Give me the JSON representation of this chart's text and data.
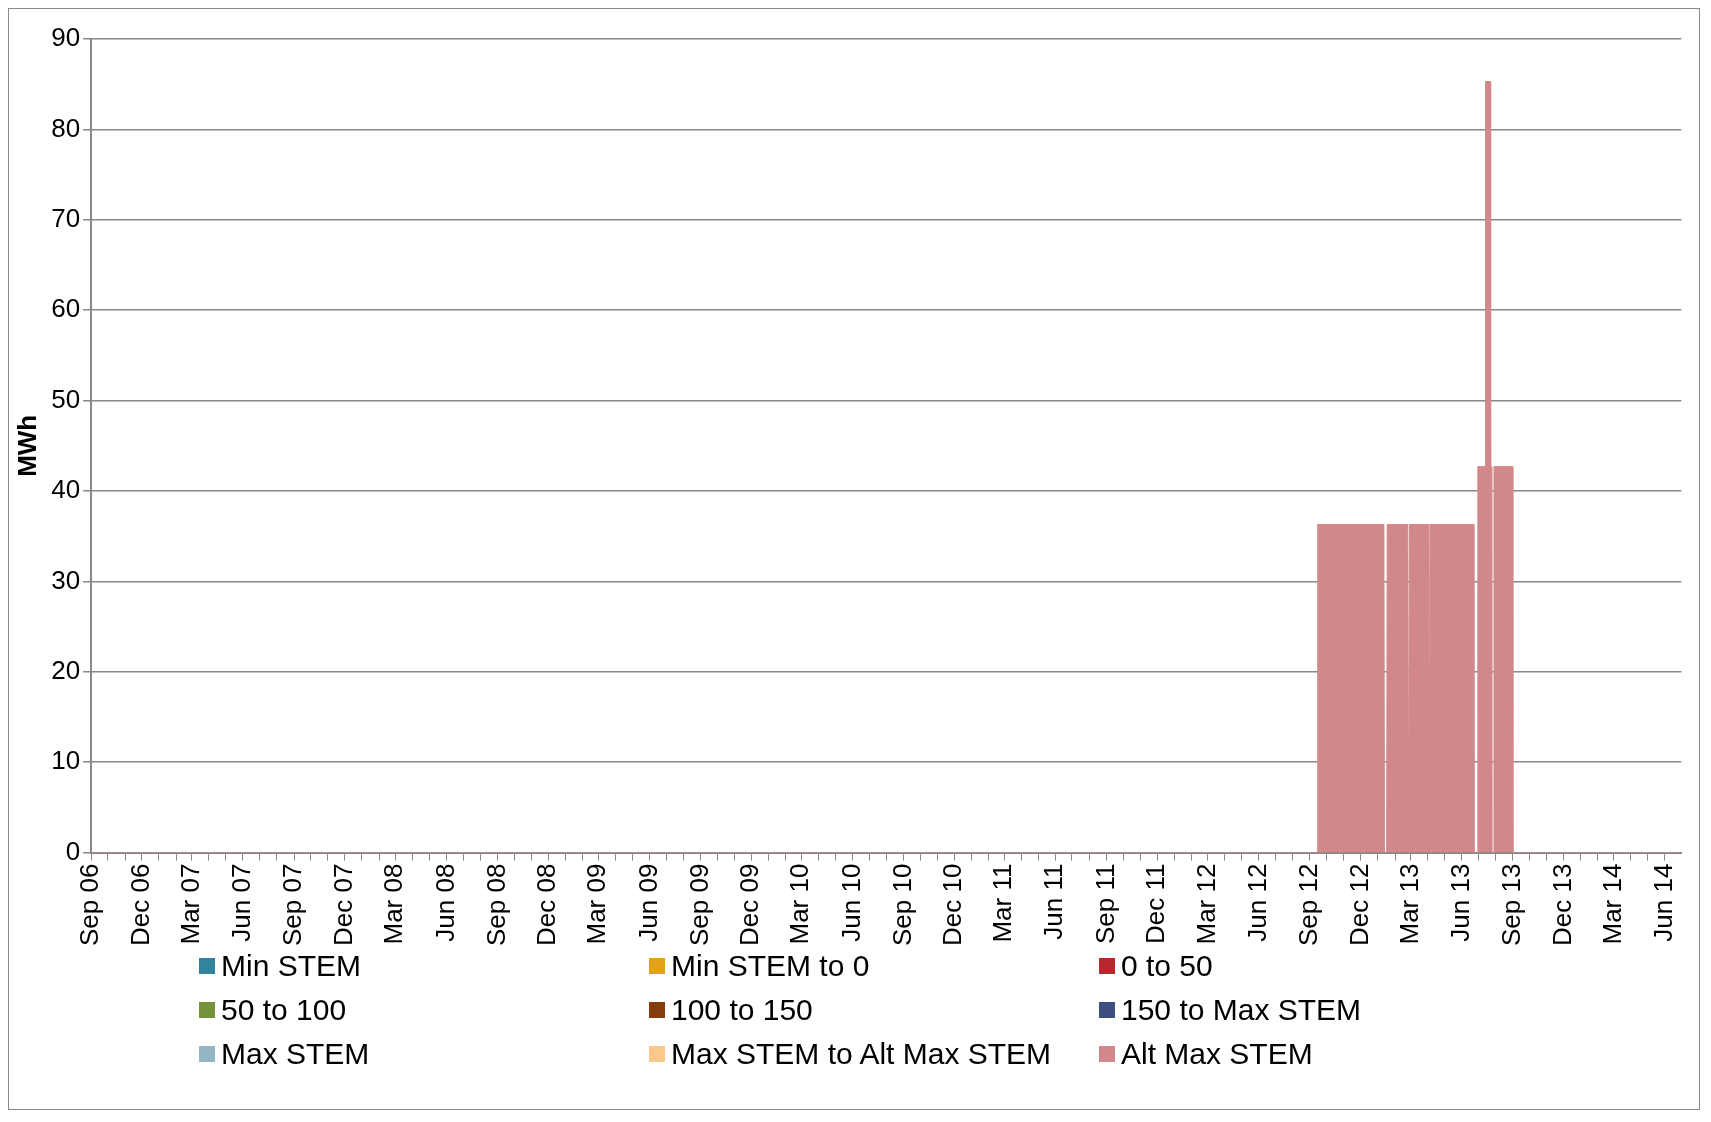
{
  "chart_data": {
    "type": "area",
    "ylabel": "MWh",
    "grid": "y",
    "legend": "bottom",
    "x": [
      "2006-09-01",
      "2012-09-14",
      "2012-09-15",
      "2013-01-12",
      "2013-01-13",
      "2013-01-17",
      "2013-01-18",
      "2013-02-24",
      "2013-02-25",
      "2013-02-26",
      "2013-02-27",
      "2013-04-03",
      "2013-04-04",
      "2013-04-05",
      "2013-06-22",
      "2013-06-23",
      "2013-06-29",
      "2013-06-30",
      "2013-07-13",
      "2013-07-14",
      "2013-07-22",
      "2013-07-23",
      "2013-07-24",
      "2013-07-25",
      "2013-07-28",
      "2013-07-29",
      "2013-08-31",
      "2013-09-01",
      "2014-07-01"
    ],
    "xlim": [
      "2006-09-01",
      "2014-07-01"
    ],
    "xticks": [
      {
        "value": "2006-09",
        "label": "Sep 06"
      },
      {
        "value": "2006-10",
        "label": null
      },
      {
        "value": "2006-11",
        "label": null
      },
      {
        "value": "2006-12",
        "label": "Dec 06"
      },
      {
        "value": "2007-01",
        "label": null
      },
      {
        "value": "2007-02",
        "label": null
      },
      {
        "value": "2007-03",
        "label": "Mar 07"
      },
      {
        "value": "2007-04",
        "label": null
      },
      {
        "value": "2007-05",
        "label": null
      },
      {
        "value": "2007-06",
        "label": "Jun 07"
      },
      {
        "value": "2007-07",
        "label": null
      },
      {
        "value": "2007-08",
        "label": null
      },
      {
        "value": "2007-09",
        "label": "Sep 07"
      },
      {
        "value": "2007-10",
        "label": null
      },
      {
        "value": "2007-11",
        "label": null
      },
      {
        "value": "2007-12",
        "label": "Dec 07"
      },
      {
        "value": "2008-01",
        "label": null
      },
      {
        "value": "2008-02",
        "label": null
      },
      {
        "value": "2008-03",
        "label": "Mar 08"
      },
      {
        "value": "2008-04",
        "label": null
      },
      {
        "value": "2008-05",
        "label": null
      },
      {
        "value": "2008-06",
        "label": "Jun 08"
      },
      {
        "value": "2008-07",
        "label": null
      },
      {
        "value": "2008-08",
        "label": null
      },
      {
        "value": "2008-09",
        "label": "Sep 08"
      },
      {
        "value": "2008-10",
        "label": null
      },
      {
        "value": "2008-11",
        "label": null
      },
      {
        "value": "2008-12",
        "label": "Dec 08"
      },
      {
        "value": "2009-01",
        "label": null
      },
      {
        "value": "2009-02",
        "label": null
      },
      {
        "value": "2009-03",
        "label": "Mar 09"
      },
      {
        "value": "2009-04",
        "label": null
      },
      {
        "value": "2009-05",
        "label": null
      },
      {
        "value": "2009-06",
        "label": "Jun 09"
      },
      {
        "value": "2009-07",
        "label": null
      },
      {
        "value": "2009-08",
        "label": null
      },
      {
        "value": "2009-09",
        "label": "Sep 09"
      },
      {
        "value": "2009-10",
        "label": null
      },
      {
        "value": "2009-11",
        "label": null
      },
      {
        "value": "2009-12",
        "label": "Dec 09"
      },
      {
        "value": "2010-01",
        "label": null
      },
      {
        "value": "2010-02",
        "label": null
      },
      {
        "value": "2010-03",
        "label": "Mar 10"
      },
      {
        "value": "2010-04",
        "label": null
      },
      {
        "value": "2010-05",
        "label": null
      },
      {
        "value": "2010-06",
        "label": "Jun 10"
      },
      {
        "value": "2010-07",
        "label": null
      },
      {
        "value": "2010-08",
        "label": null
      },
      {
        "value": "2010-09",
        "label": "Sep 10"
      },
      {
        "value": "2010-10",
        "label": null
      },
      {
        "value": "2010-11",
        "label": null
      },
      {
        "value": "2010-12",
        "label": "Dec 10"
      },
      {
        "value": "2011-01",
        "label": null
      },
      {
        "value": "2011-02",
        "label": null
      },
      {
        "value": "2011-03",
        "label": "Mar 11"
      },
      {
        "value": "2011-04",
        "label": null
      },
      {
        "value": "2011-05",
        "label": null
      },
      {
        "value": "2011-06",
        "label": "Jun 11"
      },
      {
        "value": "2011-07",
        "label": null
      },
      {
        "value": "2011-08",
        "label": null
      },
      {
        "value": "2011-09",
        "label": "Sep 11"
      },
      {
        "value": "2011-10",
        "label": null
      },
      {
        "value": "2011-11",
        "label": null
      },
      {
        "value": "2011-12",
        "label": "Dec 11"
      },
      {
        "value": "2012-01",
        "label": null
      },
      {
        "value": "2012-02",
        "label": null
      },
      {
        "value": "2012-03",
        "label": "Mar 12"
      },
      {
        "value": "2012-04",
        "label": null
      },
      {
        "value": "2012-05",
        "label": null
      },
      {
        "value": "2012-06",
        "label": "Jun 12"
      },
      {
        "value": "2012-07",
        "label": null
      },
      {
        "value": "2012-08",
        "label": null
      },
      {
        "value": "2012-09",
        "label": "Sep 12"
      },
      {
        "value": "2012-10",
        "label": null
      },
      {
        "value": "2012-11",
        "label": null
      },
      {
        "value": "2012-12",
        "label": "Dec 12"
      },
      {
        "value": "2013-01",
        "label": null
      },
      {
        "value": "2013-02",
        "label": null
      },
      {
        "value": "2013-03",
        "label": "Mar 13"
      },
      {
        "value": "2013-04",
        "label": null
      },
      {
        "value": "2013-05",
        "label": null
      },
      {
        "value": "2013-06",
        "label": "Jun 13"
      },
      {
        "value": "2013-07",
        "label": null
      },
      {
        "value": "2013-08",
        "label": null
      },
      {
        "value": "2013-09",
        "label": "Sep 13"
      },
      {
        "value": "2013-10",
        "label": null
      },
      {
        "value": "2013-11",
        "label": null
      },
      {
        "value": "2013-12",
        "label": "Dec 13"
      },
      {
        "value": "2014-01",
        "label": null
      },
      {
        "value": "2014-02",
        "label": null
      },
      {
        "value": "2014-03",
        "label": "Mar 14"
      },
      {
        "value": "2014-04",
        "label": null
      },
      {
        "value": "2014-05",
        "label": null
      },
      {
        "value": "2014-06",
        "label": "Jun 14"
      }
    ],
    "ylim": [
      0,
      90
    ],
    "yticks": [
      0,
      10,
      20,
      30,
      40,
      50,
      60,
      70,
      80,
      90
    ],
    "series": [
      {
        "name": "Min STEM",
        "color": "#31849b",
        "values": [
          null,
          null,
          null,
          null,
          null,
          null,
          null,
          null,
          null,
          null,
          null,
          null,
          null,
          null,
          null,
          null,
          null,
          null,
          null,
          null,
          null,
          null,
          null,
          null,
          null,
          null,
          null,
          null,
          null
        ]
      },
      {
        "name": "Min STEM to 0",
        "color": "#e3a21a",
        "values": [
          null,
          null,
          null,
          null,
          null,
          null,
          null,
          null,
          null,
          null,
          null,
          null,
          null,
          null,
          null,
          null,
          null,
          null,
          null,
          null,
          null,
          null,
          null,
          null,
          null,
          null,
          null,
          null,
          null
        ]
      },
      {
        "name": "0 to 50",
        "color": "#b7272d",
        "values": [
          null,
          null,
          null,
          null,
          null,
          null,
          null,
          null,
          null,
          null,
          null,
          null,
          null,
          null,
          null,
          null,
          null,
          null,
          null,
          null,
          null,
          null,
          null,
          null,
          null,
          null,
          null,
          null,
          null
        ]
      },
      {
        "name": "50 to 100",
        "color": "#76923c",
        "values": [
          null,
          null,
          null,
          null,
          null,
          null,
          null,
          null,
          null,
          null,
          null,
          null,
          null,
          null,
          null,
          null,
          null,
          null,
          null,
          null,
          null,
          null,
          null,
          null,
          null,
          null,
          null,
          null,
          null
        ]
      },
      {
        "name": "100 to 150",
        "color": "#843c0c",
        "values": [
          null,
          null,
          null,
          null,
          null,
          null,
          null,
          null,
          null,
          null,
          null,
          null,
          null,
          null,
          null,
          null,
          null,
          null,
          null,
          null,
          null,
          null,
          null,
          null,
          null,
          null,
          null,
          null,
          null
        ]
      },
      {
        "name": "150 to Max STEM",
        "color": "#3f4f80",
        "values": [
          null,
          null,
          null,
          null,
          null,
          null,
          null,
          null,
          null,
          null,
          null,
          null,
          null,
          null,
          null,
          null,
          null,
          null,
          null,
          null,
          null,
          null,
          null,
          null,
          null,
          null,
          null,
          null,
          null
        ]
      },
      {
        "name": "Max STEM",
        "color": "#93b6c4",
        "values": [
          null,
          null,
          null,
          null,
          null,
          null,
          null,
          null,
          null,
          null,
          null,
          null,
          null,
          null,
          null,
          null,
          null,
          null,
          null,
          null,
          null,
          null,
          null,
          null,
          null,
          null,
          null,
          null,
          null
        ]
      },
      {
        "name": "Max STEM to Alt Max STEM",
        "color": "#fac88a",
        "values": [
          null,
          null,
          null,
          null,
          null,
          null,
          null,
          null,
          null,
          null,
          null,
          null,
          null,
          null,
          null,
          null,
          null,
          null,
          null,
          null,
          null,
          null,
          null,
          null,
          null,
          null,
          null,
          null,
          null
        ]
      },
      {
        "name": "Alt Max STEM",
        "color": "#d2888a",
        "values": [
          0,
          0,
          36.3,
          36.3,
          0,
          0,
          36.3,
          36.3,
          0,
          0,
          36.3,
          36.3,
          0,
          36.3,
          36.3,
          0,
          0,
          42.7,
          42.7,
          85.3,
          85.3,
          42.7,
          42.7,
          0,
          0,
          42.7,
          42.7,
          0,
          0
        ]
      }
    ]
  }
}
